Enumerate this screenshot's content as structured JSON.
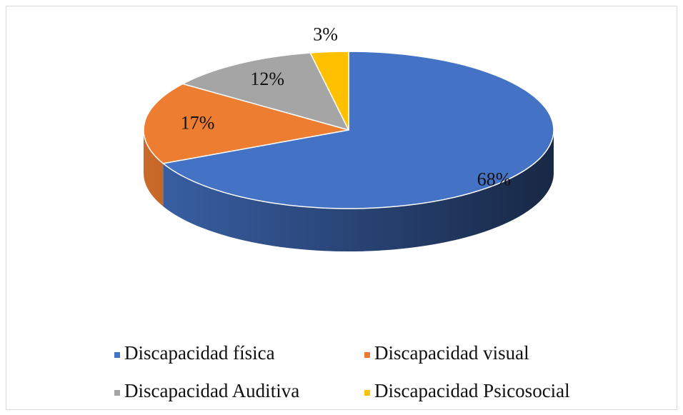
{
  "chart_data": {
    "type": "pie",
    "categories": [
      "Discapacidad física",
      "Discapacidad visual",
      "Discapacidad Auditiva",
      "Discapacidad Psicosocial"
    ],
    "values": [
      68,
      17,
      12,
      3
    ],
    "value_labels": [
      "68%",
      "17%",
      "12%",
      "3%"
    ],
    "colors": [
      "#4472c4",
      "#ed7d31",
      "#a5a5a5",
      "#ffc000"
    ],
    "legend": "bottom"
  }
}
